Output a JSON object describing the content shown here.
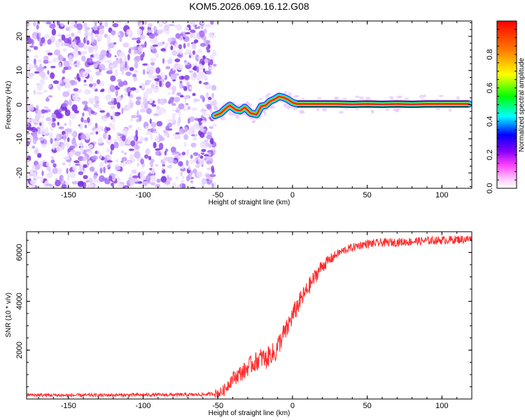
{
  "figure": {
    "title": "KOM5.2026.069.16.12.G08"
  },
  "chart_data": [
    {
      "type": "heatmap",
      "title": "KOM5.2026.069.16.12.G08",
      "xlabel": "Height of straight line (km)",
      "ylabel": "Frequency (Hz)",
      "xlim": [
        -178,
        120
      ],
      "ylim": [
        -24.5,
        24.5
      ],
      "x_ticks": [
        -150,
        -100,
        -50,
        0,
        50,
        100
      ],
      "x_tick_labels": [
        "-150",
        "-100",
        "-50",
        "0",
        "50",
        "100"
      ],
      "y_ticks": [
        -20,
        -10,
        0,
        10,
        20
      ],
      "y_tick_labels": [
        "-20",
        "-10",
        "0",
        "10",
        "20"
      ],
      "noise_region_x": [
        -178,
        -52
      ],
      "signal_region_x": [
        -52,
        120
      ],
      "signal_trace": {
        "x": [
          -52,
          -48,
          -45,
          -42,
          -38,
          -35,
          -32,
          -28,
          -24,
          -21,
          -18,
          -15,
          -12,
          -9,
          -6,
          -3,
          0,
          3,
          10,
          20,
          30,
          40,
          50,
          60,
          70,
          80,
          90,
          100,
          110,
          118
        ],
        "y": [
          -3.2,
          -2.5,
          -1.2,
          -0.2,
          -1.5,
          -1.8,
          -0.8,
          -2.5,
          -2.9,
          -0.5,
          -0.2,
          1.0,
          1.6,
          2.4,
          2.1,
          1.5,
          0.6,
          0.2,
          0.2,
          0.2,
          0.2,
          0.1,
          0.2,
          0.1,
          0.2,
          0.1,
          0.2,
          0.2,
          0.2,
          0.2
        ]
      },
      "colorbar": {
        "label": "Normalized spectral amplitude",
        "range": [
          0.0,
          1.0
        ],
        "ticks": [
          0.0,
          0.2,
          0.4,
          0.6,
          0.8
        ],
        "tick_labels": [
          "0.0",
          "0.2",
          "0.4",
          "0.6",
          "0.8"
        ],
        "colors": [
          "#ffffff",
          "#ff00ff",
          "#7f00ff",
          "#0000ff",
          "#00ffff",
          "#00ff00",
          "#ffff00",
          "#ff8000",
          "#ff0000"
        ]
      }
    },
    {
      "type": "line",
      "xlabel": "Height of straight line (km)",
      "ylabel": "SNR (10 * v/v)",
      "xlim": [
        -178,
        120
      ],
      "ylim": [
        0,
        6850
      ],
      "x_ticks": [
        -150,
        -100,
        -50,
        0,
        50,
        100
      ],
      "x_tick_labels": [
        "-150",
        "-100",
        "-50",
        "0",
        "50",
        "100"
      ],
      "y_ticks": [
        2000,
        4000,
        6000
      ],
      "y_tick_labels": [
        "2000",
        "4000",
        "6000"
      ],
      "line_color": "#ff2a2a",
      "series": [
        {
          "name": "SNR",
          "x": [
            -178,
            -150,
            -120,
            -100,
            -80,
            -60,
            -52,
            -48,
            -45,
            -42,
            -40,
            -37,
            -35,
            -32,
            -30,
            -27,
            -25,
            -22,
            -20,
            -18,
            -16,
            -14,
            -12,
            -10,
            -8,
            -6,
            -4,
            -2,
            0,
            2,
            4,
            6,
            8,
            10,
            12,
            15,
            18,
            20,
            25,
            30,
            35,
            40,
            45,
            50,
            60,
            70,
            80,
            90,
            100,
            110,
            120
          ],
          "y": [
            170,
            150,
            160,
            170,
            170,
            180,
            220,
            260,
            420,
            700,
            850,
            950,
            1050,
            1150,
            1300,
            1450,
            1500,
            1650,
            1700,
            1600,
            1750,
            1900,
            1800,
            2150,
            2400,
            2650,
            2800,
            3150,
            3400,
            3650,
            3900,
            4100,
            4300,
            4500,
            4700,
            5000,
            5300,
            5450,
            5700,
            5950,
            6100,
            6200,
            6300,
            6350,
            6400,
            6420,
            6450,
            6480,
            6500,
            6530,
            6550
          ]
        }
      ]
    }
  ]
}
